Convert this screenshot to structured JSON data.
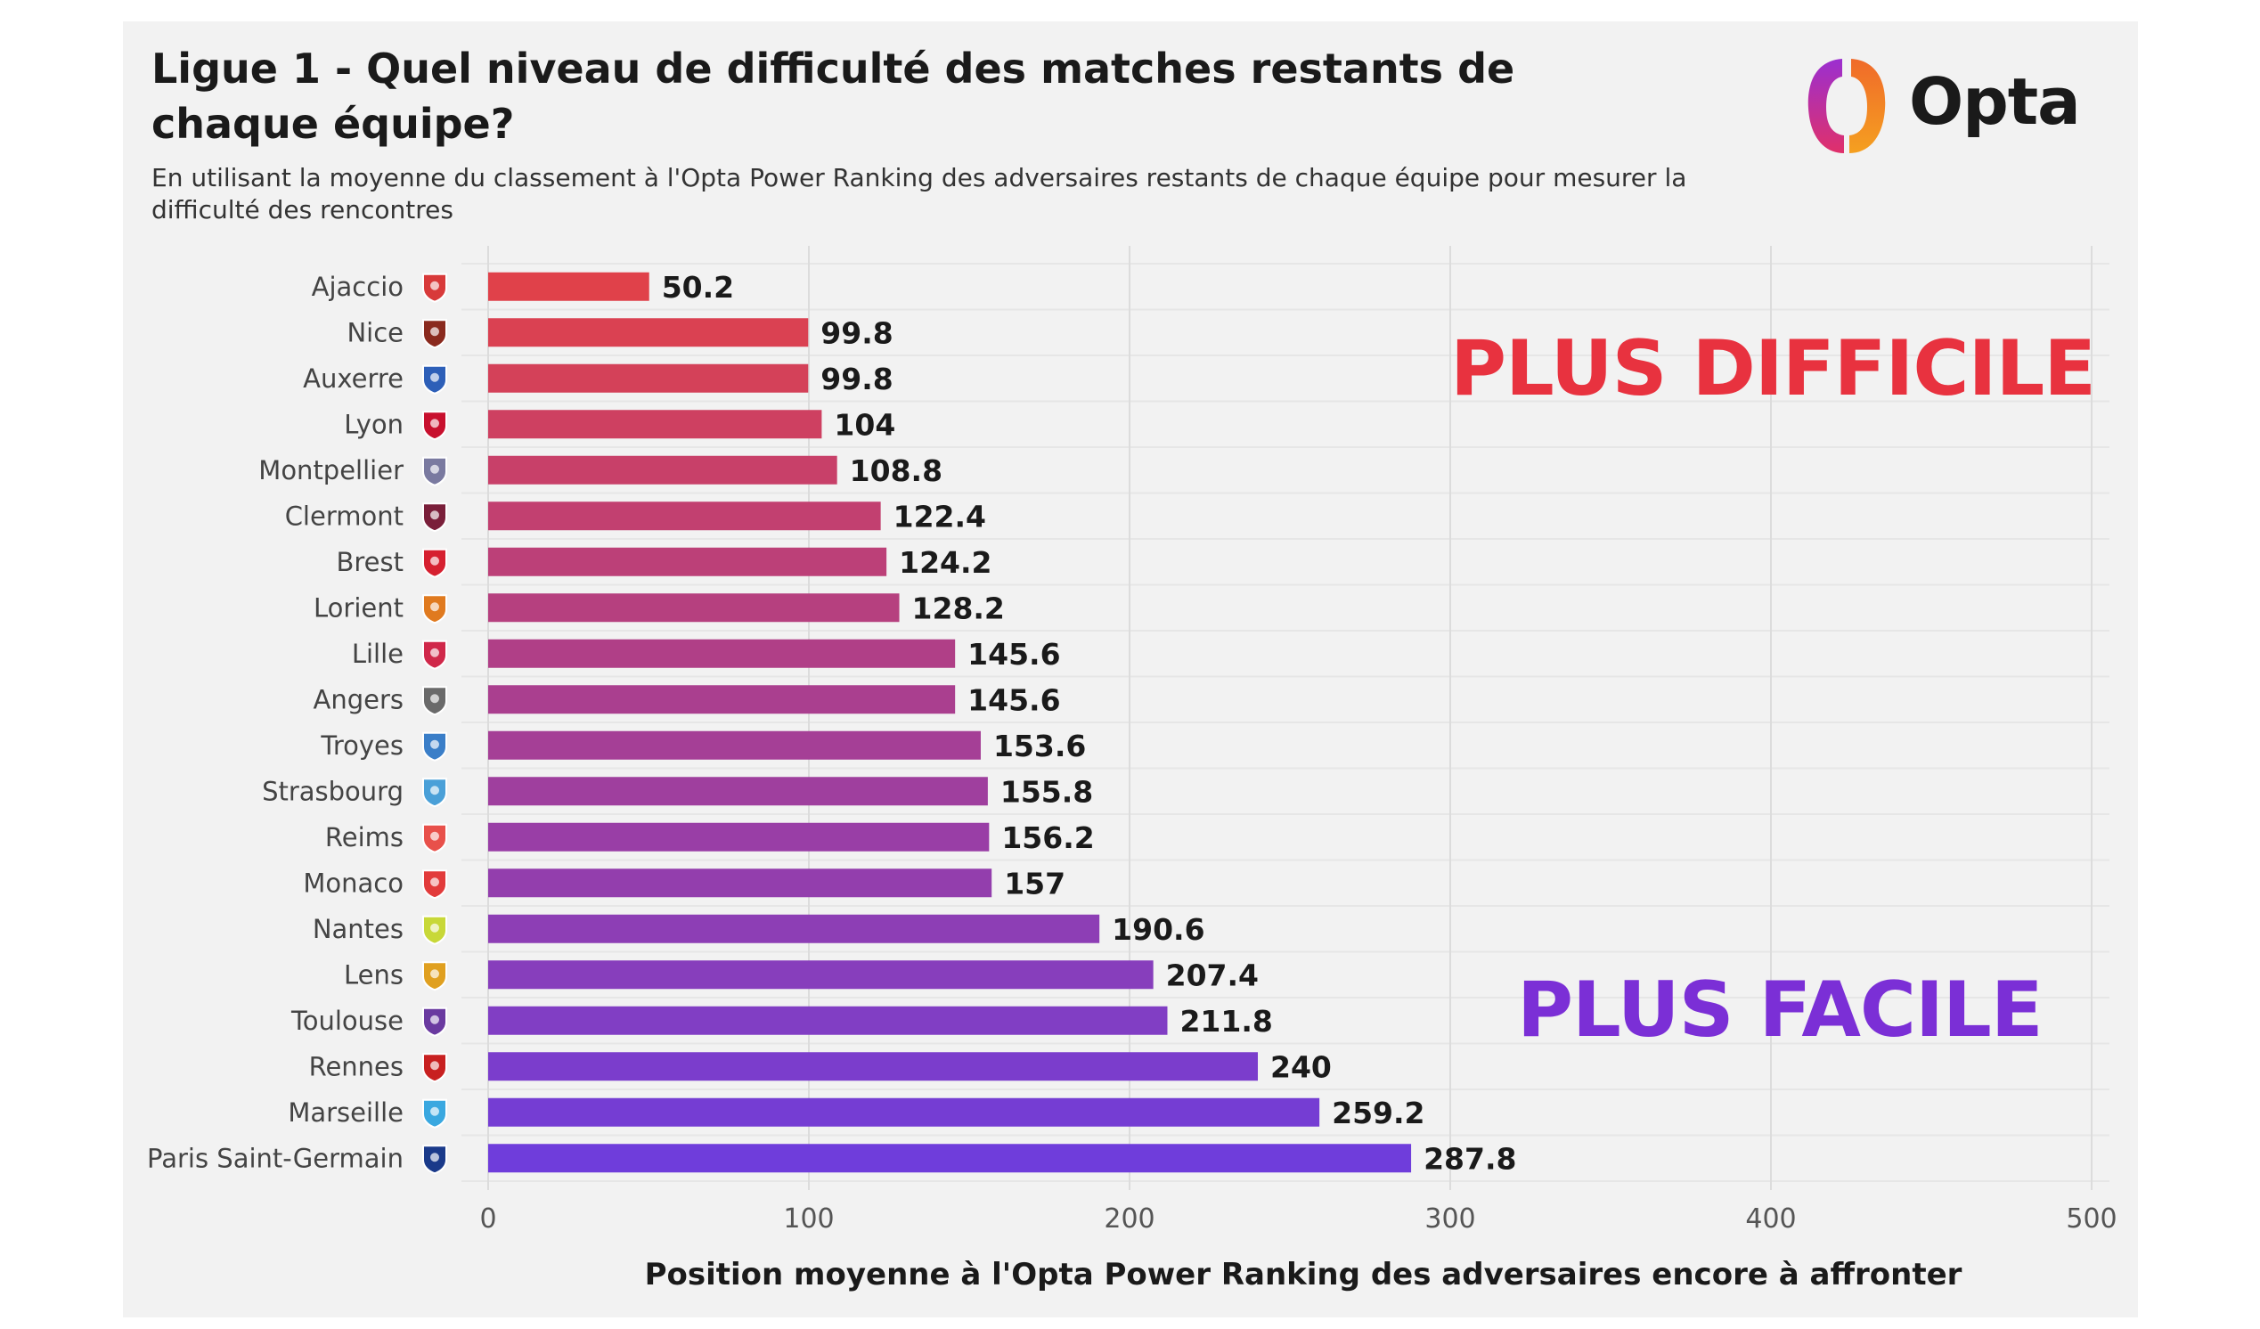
{
  "header": {
    "title": "Ligue 1 - Quel niveau de difficulté des matches restants de chaque équipe?",
    "subtitle": "En utilisant la moyenne du classement à l'Opta Power Ranking des adversaires restants de chaque équipe pour mesurer la difficulté des rencontres",
    "logo_text": "Opta"
  },
  "callouts": {
    "hard": "PLUS DIFFICILE",
    "easy": "PLUS FACILE",
    "hard_color": "#e8323f",
    "easy_color": "#7b2fd6"
  },
  "chart_data": {
    "type": "bar",
    "orientation": "horizontal",
    "categories": [
      "Ajaccio",
      "Nice",
      "Auxerre",
      "Lyon",
      "Montpellier",
      "Clermont",
      "Brest",
      "Lorient",
      "Lille",
      "Angers",
      "Troyes",
      "Strasbourg",
      "Reims",
      "Monaco",
      "Nantes",
      "Lens",
      "Toulouse",
      "Rennes",
      "Marseille",
      "Paris Saint-Germain"
    ],
    "values": [
      50.2,
      99.8,
      99.8,
      104,
      108.8,
      122.4,
      124.2,
      128.2,
      145.6,
      145.6,
      153.6,
      155.8,
      156.2,
      157,
      190.6,
      207.4,
      211.8,
      240,
      259.2,
      287.8
    ],
    "value_labels": [
      "50.2",
      "99.8",
      "99.8",
      "104",
      "108.8",
      "122.4",
      "124.2",
      "128.2",
      "145.6",
      "145.6",
      "153.6",
      "155.8",
      "156.2",
      "157",
      "190.6",
      "207.4",
      "211.8",
      "240",
      "259.2",
      "287.8"
    ],
    "xlim": [
      0,
      500
    ],
    "xticks": [
      0,
      100,
      200,
      300,
      400,
      500
    ],
    "xlabel": "Position moyenne à l'Opta Power Ranking des adversaires encore à affronter",
    "ylabel": "",
    "grid": "vertical",
    "color_gradient": [
      "#e0414a",
      "#6f3ddb"
    ],
    "team_icon_names": [
      "ajaccio-crest-icon",
      "nice-crest-icon",
      "auxerre-crest-icon",
      "lyon-crest-icon",
      "montpellier-crest-icon",
      "clermont-crest-icon",
      "brest-crest-icon",
      "lorient-crest-icon",
      "lille-crest-icon",
      "angers-crest-icon",
      "troyes-crest-icon",
      "strasbourg-crest-icon",
      "reims-crest-icon",
      "monaco-crest-icon",
      "nantes-crest-icon",
      "lens-crest-icon",
      "toulouse-crest-icon",
      "rennes-crest-icon",
      "marseille-crest-icon",
      "psg-crest-icon"
    ],
    "team_icon_colors": [
      "#d83a3a",
      "#8a2a1e",
      "#2d5fb8",
      "#c8102e",
      "#7a7aa0",
      "#7a1f3a",
      "#d62030",
      "#e07a1f",
      "#d0284a",
      "#6a6a6a",
      "#3a7ec8",
      "#4aa0d8",
      "#e8504a",
      "#e23b3b",
      "#c8d838",
      "#e0a020",
      "#6a3aa0",
      "#c82020",
      "#3aa8e0",
      "#1a3a8a"
    ]
  }
}
